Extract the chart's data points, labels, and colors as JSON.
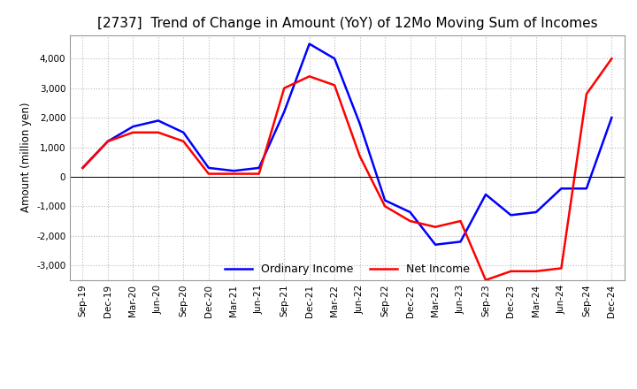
{
  "title": "[2737]  Trend of Change in Amount (YoY) of 12Mo Moving Sum of Incomes",
  "ylabel": "Amount (million yen)",
  "x_labels": [
    "Sep-19",
    "Dec-19",
    "Mar-20",
    "Jun-20",
    "Sep-20",
    "Dec-20",
    "Mar-21",
    "Jun-21",
    "Sep-21",
    "Dec-21",
    "Mar-22",
    "Jun-22",
    "Sep-22",
    "Dec-22",
    "Mar-23",
    "Jun-23",
    "Sep-23",
    "Dec-23",
    "Mar-24",
    "Jun-24",
    "Sep-24",
    "Dec-24"
  ],
  "ordinary_income": [
    300,
    1200,
    1700,
    1900,
    1500,
    300,
    200,
    300,
    2200,
    4500,
    4000,
    1800,
    -800,
    -1200,
    -2300,
    -2200,
    -600,
    -1300,
    -1200,
    -400,
    -400,
    2000
  ],
  "net_income": [
    300,
    1200,
    1500,
    1500,
    1200,
    100,
    100,
    100,
    3000,
    3400,
    3100,
    700,
    -1000,
    -1500,
    -1700,
    -1500,
    -3500,
    -3200,
    -3200,
    -3100,
    2800,
    4000
  ],
  "ordinary_color": "#0000ff",
  "net_color": "#ff0000",
  "ylim": [
    -3500,
    4800
  ],
  "yticks": [
    -3000,
    -2000,
    -1000,
    0,
    1000,
    2000,
    3000,
    4000
  ],
  "grid_color": "#bbbbbb",
  "background_color": "#ffffff",
  "title_fontsize": 11,
  "legend_labels": [
    "Ordinary Income",
    "Net Income"
  ]
}
